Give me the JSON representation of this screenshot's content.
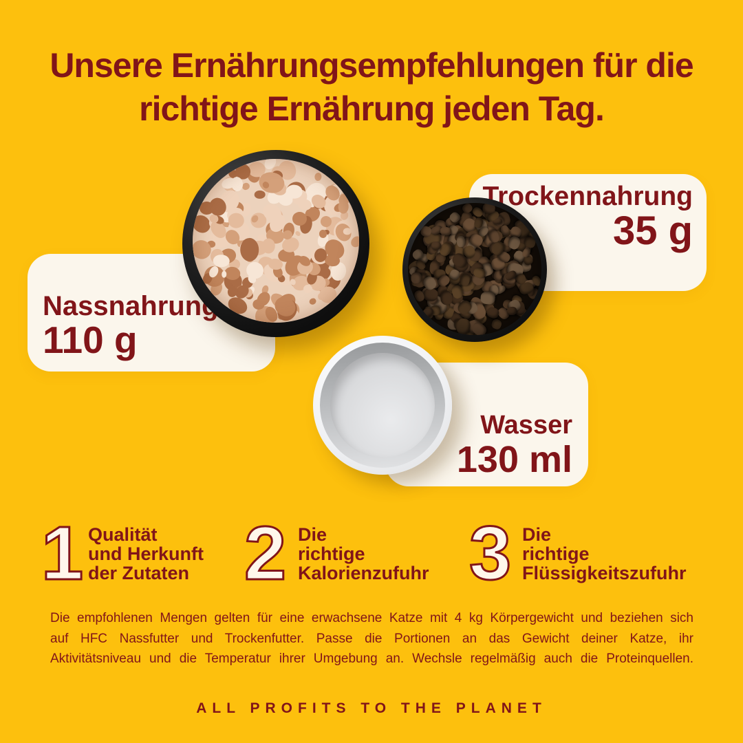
{
  "page": {
    "background_color": "#FDC00D",
    "text_color": "#811519",
    "card_color": "#FBF6EC"
  },
  "heading": {
    "line1": "Unsere Ernährungsempfehlungen für die",
    "line2": "richtige Ernährung jeden Tag."
  },
  "portions": [
    {
      "label": "Nassnahrung",
      "amount": "110 g"
    },
    {
      "label": "Trockennahrung",
      "amount": "35 g"
    },
    {
      "label": "Wasser",
      "amount": "130 ml"
    }
  ],
  "bowls": {
    "wet": {
      "name": "wet-food-bowl",
      "bowl_color": "#1a1a1a",
      "palette": [
        "#f7e6d6",
        "#efd2bb",
        "#e4bb9c",
        "#d4a07a",
        "#c1855c",
        "#aa6c46"
      ]
    },
    "dry": {
      "name": "dry-food-bowl",
      "bowl_color": "#141414",
      "palette": [
        "#5c432e",
        "#4c3623",
        "#6a4e36",
        "#3f2c1c",
        "#584026",
        "#6d5741",
        "#47331f"
      ]
    },
    "water": {
      "name": "water-bowl",
      "rim_color": "#f2f3f5",
      "water_color": "#d6d7d9"
    }
  },
  "steps": [
    {
      "number": "1",
      "lines": [
        "Qualität",
        "und Herkunft",
        "der Zutaten"
      ]
    },
    {
      "number": "2",
      "lines": [
        "Die",
        "richtige",
        "Kalorienzufuhr"
      ]
    },
    {
      "number": "3",
      "lines": [
        "Die",
        "richtige",
        "Flüssigkeitszufuhr"
      ]
    }
  ],
  "disclaimer": {
    "lines": [
      "Die empfohlenen Mengen gelten für eine erwachsene Katze mit 4 kg Körpergewicht und beziehen sich",
      "auf HFC Nassfutter und Trockenfutter. Passe die Portionen an das Gewicht deiner Katze, ihr",
      "Aktivitätsniveau und die Temperatur ihrer Umgebung an. Wechsle regelmäßig auch die Proteinquellen."
    ]
  },
  "footer": {
    "text": "ALL PROFITS TO THE PLANET"
  }
}
